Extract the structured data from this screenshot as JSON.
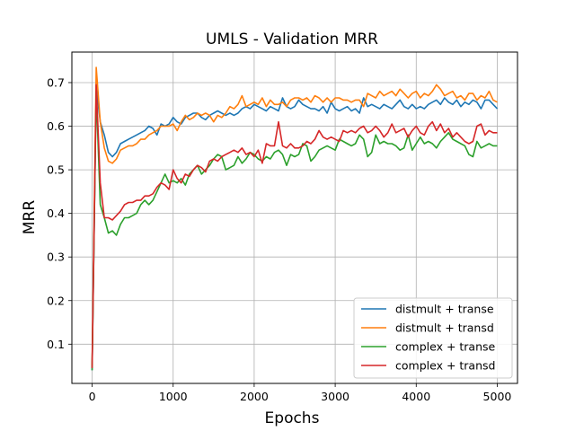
{
  "chart_data": {
    "type": "line",
    "title": "UMLS - Validation MRR",
    "xlabel": "Epochs",
    "ylabel": "MRR",
    "xlim": [
      -250,
      5250
    ],
    "ylim": [
      0.01,
      0.77
    ],
    "xticks": [
      0,
      1000,
      2000,
      3000,
      4000,
      5000
    ],
    "yticks": [
      0.1,
      0.2,
      0.3,
      0.4,
      0.5,
      0.6,
      0.7
    ],
    "grid": true,
    "legend_position": "lower-right",
    "series": [
      {
        "name": "distmult + transe",
        "color": "#1f77b4",
        "x": [
          0,
          50,
          100,
          150,
          200,
          250,
          300,
          350,
          400,
          450,
          500,
          550,
          600,
          650,
          700,
          750,
          800,
          850,
          900,
          950,
          1000,
          1050,
          1100,
          1150,
          1200,
          1250,
          1300,
          1350,
          1400,
          1450,
          1500,
          1550,
          1600,
          1650,
          1700,
          1750,
          1800,
          1850,
          1900,
          1950,
          2000,
          2050,
          2100,
          2150,
          2200,
          2250,
          2300,
          2350,
          2400,
          2450,
          2500,
          2550,
          2600,
          2650,
          2700,
          2750,
          2800,
          2850,
          2900,
          2950,
          3000,
          3050,
          3100,
          3150,
          3200,
          3250,
          3300,
          3350,
          3400,
          3450,
          3500,
          3550,
          3600,
          3650,
          3700,
          3750,
          3800,
          3850,
          3900,
          3950,
          4000,
          4050,
          4100,
          4150,
          4200,
          4250,
          4300,
          4350,
          4400,
          4450,
          4500,
          4550,
          4600,
          4650,
          4700,
          4750,
          4800,
          4850,
          4900,
          4950,
          5000
        ],
        "values": [
          0.04,
          0.69,
          0.61,
          0.58,
          0.54,
          0.53,
          0.54,
          0.56,
          0.565,
          0.57,
          0.575,
          0.58,
          0.585,
          0.59,
          0.6,
          0.595,
          0.58,
          0.605,
          0.6,
          0.605,
          0.62,
          0.61,
          0.605,
          0.62,
          0.625,
          0.63,
          0.63,
          0.62,
          0.615,
          0.625,
          0.63,
          0.635,
          0.63,
          0.625,
          0.63,
          0.625,
          0.63,
          0.64,
          0.645,
          0.64,
          0.65,
          0.645,
          0.64,
          0.635,
          0.645,
          0.64,
          0.635,
          0.665,
          0.645,
          0.64,
          0.645,
          0.66,
          0.65,
          0.645,
          0.64,
          0.64,
          0.635,
          0.645,
          0.63,
          0.655,
          0.64,
          0.635,
          0.64,
          0.645,
          0.635,
          0.64,
          0.63,
          0.665,
          0.645,
          0.65,
          0.645,
          0.64,
          0.65,
          0.645,
          0.64,
          0.65,
          0.66,
          0.645,
          0.64,
          0.65,
          0.64,
          0.645,
          0.64,
          0.65,
          0.655,
          0.66,
          0.65,
          0.665,
          0.655,
          0.65,
          0.66,
          0.645,
          0.655,
          0.65,
          0.66,
          0.655,
          0.64,
          0.66,
          0.66,
          0.65,
          0.64
        ]
      },
      {
        "name": "distmult + transd",
        "color": "#ff7f0e",
        "x": [
          0,
          50,
          100,
          150,
          200,
          250,
          300,
          350,
          400,
          450,
          500,
          550,
          600,
          650,
          700,
          750,
          800,
          850,
          900,
          950,
          1000,
          1050,
          1100,
          1150,
          1200,
          1250,
          1300,
          1350,
          1400,
          1450,
          1500,
          1550,
          1600,
          1650,
          1700,
          1750,
          1800,
          1850,
          1900,
          1950,
          2000,
          2050,
          2100,
          2150,
          2200,
          2250,
          2300,
          2350,
          2400,
          2450,
          2500,
          2550,
          2600,
          2650,
          2700,
          2750,
          2800,
          2850,
          2900,
          2950,
          3000,
          3050,
          3100,
          3150,
          3200,
          3250,
          3300,
          3350,
          3400,
          3450,
          3500,
          3550,
          3600,
          3650,
          3700,
          3750,
          3800,
          3850,
          3900,
          3950,
          4000,
          4050,
          4100,
          4150,
          4200,
          4250,
          4300,
          4350,
          4400,
          4450,
          4500,
          4550,
          4600,
          4650,
          4700,
          4750,
          4800,
          4850,
          4900,
          4950,
          5000
        ],
        "values": [
          0.05,
          0.735,
          0.61,
          0.55,
          0.52,
          0.515,
          0.525,
          0.545,
          0.55,
          0.555,
          0.555,
          0.56,
          0.57,
          0.57,
          0.58,
          0.585,
          0.59,
          0.6,
          0.6,
          0.6,
          0.605,
          0.59,
          0.61,
          0.625,
          0.615,
          0.62,
          0.63,
          0.625,
          0.63,
          0.625,
          0.61,
          0.625,
          0.62,
          0.63,
          0.645,
          0.64,
          0.65,
          0.67,
          0.645,
          0.65,
          0.655,
          0.65,
          0.665,
          0.645,
          0.66,
          0.65,
          0.65,
          0.655,
          0.645,
          0.66,
          0.665,
          0.665,
          0.66,
          0.665,
          0.655,
          0.67,
          0.665,
          0.655,
          0.665,
          0.655,
          0.665,
          0.665,
          0.66,
          0.66,
          0.655,
          0.66,
          0.66,
          0.645,
          0.675,
          0.67,
          0.665,
          0.68,
          0.67,
          0.675,
          0.68,
          0.67,
          0.685,
          0.675,
          0.665,
          0.675,
          0.68,
          0.665,
          0.675,
          0.67,
          0.68,
          0.695,
          0.685,
          0.67,
          0.675,
          0.68,
          0.665,
          0.67,
          0.66,
          0.675,
          0.675,
          0.66,
          0.67,
          0.665,
          0.68,
          0.66,
          0.655
        ]
      },
      {
        "name": "complex + transe",
        "color": "#2ca02c",
        "x": [
          0,
          50,
          100,
          150,
          200,
          250,
          300,
          350,
          400,
          450,
          500,
          550,
          600,
          650,
          700,
          750,
          800,
          850,
          900,
          950,
          1000,
          1050,
          1100,
          1150,
          1200,
          1250,
          1300,
          1350,
          1400,
          1450,
          1500,
          1550,
          1600,
          1650,
          1700,
          1750,
          1800,
          1850,
          1900,
          1950,
          2000,
          2050,
          2100,
          2150,
          2200,
          2250,
          2300,
          2350,
          2400,
          2450,
          2500,
          2550,
          2600,
          2650,
          2700,
          2750,
          2800,
          2850,
          2900,
          2950,
          3000,
          3050,
          3100,
          3150,
          3200,
          3250,
          3300,
          3350,
          3400,
          3450,
          3500,
          3550,
          3600,
          3650,
          3700,
          3750,
          3800,
          3850,
          3900,
          3950,
          4000,
          4050,
          4100,
          4150,
          4200,
          4250,
          4300,
          4350,
          4400,
          4450,
          4500,
          4550,
          4600,
          4650,
          4700,
          4750,
          4800,
          4850,
          4900,
          4950,
          5000
        ],
        "values": [
          0.04,
          0.68,
          0.42,
          0.39,
          0.355,
          0.36,
          0.35,
          0.375,
          0.39,
          0.39,
          0.395,
          0.4,
          0.42,
          0.43,
          0.42,
          0.43,
          0.45,
          0.47,
          0.49,
          0.47,
          0.475,
          0.47,
          0.48,
          0.465,
          0.49,
          0.5,
          0.51,
          0.49,
          0.5,
          0.51,
          0.525,
          0.535,
          0.53,
          0.5,
          0.505,
          0.51,
          0.53,
          0.515,
          0.525,
          0.54,
          0.535,
          0.525,
          0.52,
          0.53,
          0.525,
          0.54,
          0.545,
          0.535,
          0.51,
          0.535,
          0.53,
          0.535,
          0.56,
          0.555,
          0.52,
          0.53,
          0.545,
          0.55,
          0.555,
          0.55,
          0.545,
          0.57,
          0.565,
          0.56,
          0.555,
          0.56,
          0.58,
          0.57,
          0.53,
          0.54,
          0.58,
          0.56,
          0.565,
          0.56,
          0.56,
          0.555,
          0.545,
          0.55,
          0.58,
          0.545,
          0.56,
          0.575,
          0.56,
          0.565,
          0.56,
          0.55,
          0.565,
          0.575,
          0.585,
          0.57,
          0.565,
          0.56,
          0.555,
          0.535,
          0.53,
          0.565,
          0.55,
          0.555,
          0.56,
          0.555,
          0.555
        ]
      },
      {
        "name": "complex + transd",
        "color": "#d62728",
        "x": [
          0,
          50,
          100,
          150,
          200,
          250,
          300,
          350,
          400,
          450,
          500,
          550,
          600,
          650,
          700,
          750,
          800,
          850,
          900,
          950,
          1000,
          1050,
          1100,
          1150,
          1200,
          1250,
          1300,
          1350,
          1400,
          1450,
          1500,
          1550,
          1600,
          1650,
          1700,
          1750,
          1800,
          1850,
          1900,
          1950,
          2000,
          2050,
          2100,
          2150,
          2200,
          2250,
          2300,
          2350,
          2400,
          2450,
          2500,
          2550,
          2600,
          2650,
          2700,
          2750,
          2800,
          2850,
          2900,
          2950,
          3000,
          3050,
          3100,
          3150,
          3200,
          3250,
          3300,
          3350,
          3400,
          3450,
          3500,
          3550,
          3600,
          3650,
          3700,
          3750,
          3800,
          3850,
          3900,
          3950,
          4000,
          4050,
          4100,
          4150,
          4200,
          4250,
          4300,
          4350,
          4400,
          4450,
          4500,
          4550,
          4600,
          4650,
          4700,
          4750,
          4800,
          4850,
          4900,
          4950,
          5000
        ],
        "values": [
          0.045,
          0.695,
          0.47,
          0.39,
          0.39,
          0.385,
          0.395,
          0.405,
          0.42,
          0.425,
          0.425,
          0.43,
          0.43,
          0.44,
          0.44,
          0.445,
          0.46,
          0.47,
          0.465,
          0.455,
          0.5,
          0.48,
          0.47,
          0.49,
          0.485,
          0.5,
          0.51,
          0.505,
          0.495,
          0.52,
          0.525,
          0.52,
          0.53,
          0.535,
          0.54,
          0.545,
          0.54,
          0.55,
          0.535,
          0.54,
          0.53,
          0.545,
          0.515,
          0.56,
          0.555,
          0.555,
          0.61,
          0.555,
          0.55,
          0.56,
          0.55,
          0.55,
          0.555,
          0.565,
          0.56,
          0.57,
          0.59,
          0.575,
          0.57,
          0.575,
          0.57,
          0.565,
          0.59,
          0.585,
          0.59,
          0.585,
          0.595,
          0.6,
          0.585,
          0.59,
          0.6,
          0.59,
          0.575,
          0.585,
          0.605,
          0.585,
          0.59,
          0.595,
          0.575,
          0.59,
          0.6,
          0.585,
          0.58,
          0.6,
          0.61,
          0.59,
          0.605,
          0.585,
          0.595,
          0.575,
          0.585,
          0.575,
          0.565,
          0.56,
          0.565,
          0.6,
          0.605,
          0.58,
          0.59,
          0.585,
          0.585
        ]
      }
    ]
  }
}
